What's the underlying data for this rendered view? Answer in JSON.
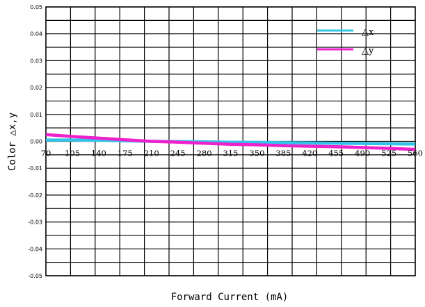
{
  "chart_data": {
    "type": "line",
    "title": "",
    "xlabel": "Forward Current (mA)",
    "ylabel": "Color △x,y",
    "x_ticks": [
      "70",
      "105",
      "140",
      "175",
      "210",
      "245",
      "280",
      "315",
      "350",
      "385",
      "420",
      "455",
      "490",
      "525",
      "560"
    ],
    "y_ticks": [
      "0.05",
      "0.04",
      "0.03",
      "0.02",
      "0.01",
      "0.00",
      "-0.01",
      "-0.02",
      "-0.03",
      "-0.04",
      "-0.05"
    ],
    "xlim": [
      70,
      560
    ],
    "ylim": [
      -0.05,
      0.05
    ],
    "grid": true,
    "legend_position": "top-right",
    "series": [
      {
        "name": "△x",
        "color": "#33c3e8",
        "x": [
          70,
          105,
          140,
          175,
          210,
          245,
          280,
          315,
          350,
          385,
          420,
          455,
          490,
          525,
          560
        ],
        "values": [
          0.0005,
          0.0005,
          0.0004,
          0.0002,
          0.0,
          -0.0001,
          -0.0002,
          -0.0003,
          -0.0004,
          -0.0005,
          -0.0006,
          -0.0007,
          -0.0008,
          -0.0009,
          -0.001
        ]
      },
      {
        "name": "△y",
        "color": "#ee22cc",
        "x": [
          70,
          105,
          140,
          175,
          210,
          245,
          280,
          315,
          350,
          385,
          420,
          455,
          490,
          525,
          560
        ],
        "values": [
          0.0025,
          0.0018,
          0.0012,
          0.0006,
          0.0,
          -0.0003,
          -0.0007,
          -0.0011,
          -0.0013,
          -0.0016,
          -0.0018,
          -0.002,
          -0.0023,
          -0.0026,
          -0.003
        ]
      }
    ]
  }
}
